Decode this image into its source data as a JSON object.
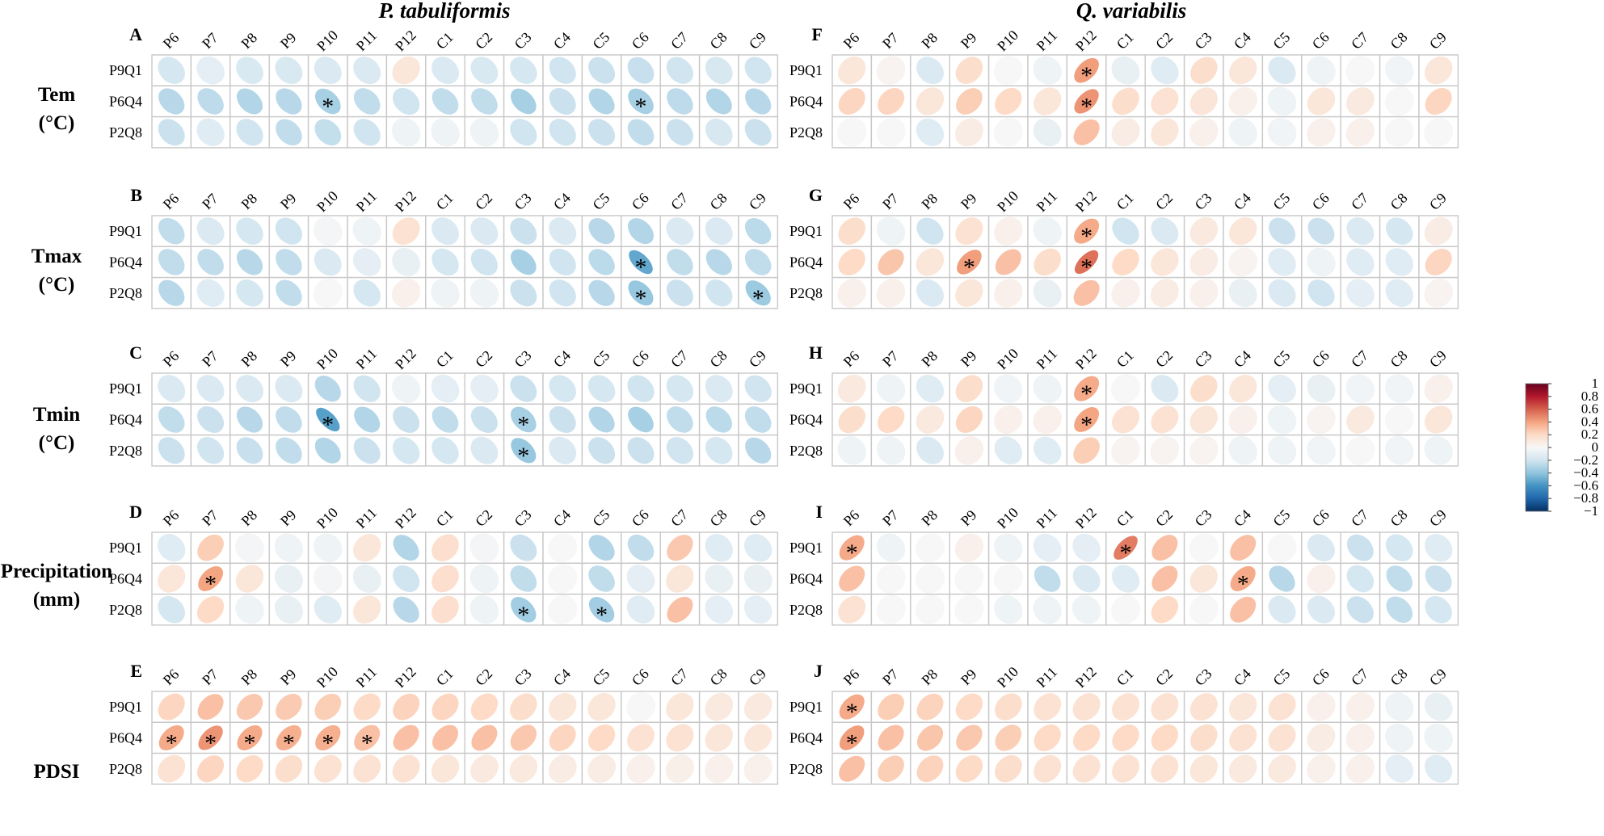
{
  "chart_data": {
    "type": "correlation-matrix",
    "titles": [
      "P. tabuliformis",
      "Q. variabilis"
    ],
    "variables": [
      "Tem\n(°C)",
      "Tmax\n(°C)",
      "Tmin\n(°C)",
      "Precipitation\n(mm)",
      "PDSI"
    ],
    "panel_labels": [
      [
        "A",
        "B",
        "C",
        "D",
        "E"
      ],
      [
        "F",
        "G",
        "H",
        "I",
        "J"
      ]
    ],
    "months": [
      "P6",
      "P7",
      "P8",
      "P9",
      "P10",
      "P11",
      "P12",
      "C1",
      "C2",
      "C3",
      "C4",
      "C5",
      "C6",
      "C7",
      "C8",
      "C9"
    ],
    "chronologies": [
      "P9Q1",
      "P6Q4",
      "P2Q8"
    ],
    "colorbar": {
      "min": -1,
      "max": 1,
      "ticks": [
        "1",
        "0.8",
        "0.6",
        "0.4",
        "0.2",
        "0",
        "−0.2",
        "−0.4",
        "−0.6",
        "−0.8",
        "−1"
      ]
    },
    "significance_marker": "*",
    "panels": [
      {
        "label": "A",
        "species": "P. tabuliformis",
        "variable": "Tem (°C)",
        "values": [
          [
            -0.18,
            -0.1,
            -0.16,
            -0.16,
            -0.15,
            -0.15,
            0.12,
            -0.15,
            -0.16,
            -0.18,
            -0.2,
            -0.22,
            -0.23,
            -0.2,
            -0.17,
            -0.2
          ],
          [
            -0.28,
            -0.26,
            -0.3,
            -0.28,
            -0.33,
            -0.25,
            -0.2,
            -0.25,
            -0.25,
            -0.33,
            -0.22,
            -0.3,
            -0.33,
            -0.26,
            -0.3,
            -0.28
          ],
          [
            -0.22,
            -0.12,
            -0.2,
            -0.25,
            -0.24,
            -0.2,
            -0.05,
            -0.05,
            -0.05,
            -0.2,
            -0.2,
            -0.22,
            -0.25,
            -0.22,
            -0.17,
            -0.22
          ]
        ],
        "sig": [
          [],
          [
            4,
            12
          ],
          []
        ]
      },
      {
        "label": "B",
        "species": "P. tabuliformis",
        "variable": "Tmax (°C)",
        "values": [
          [
            -0.25,
            -0.15,
            -0.18,
            -0.2,
            -0.02,
            -0.05,
            0.15,
            -0.15,
            -0.15,
            -0.22,
            -0.15,
            -0.28,
            -0.3,
            -0.15,
            -0.15,
            -0.27
          ],
          [
            -0.25,
            -0.25,
            -0.28,
            -0.25,
            -0.15,
            -0.1,
            -0.08,
            -0.18,
            -0.2,
            -0.33,
            -0.2,
            -0.27,
            -0.52,
            -0.25,
            -0.28,
            -0.25
          ],
          [
            -0.28,
            -0.12,
            -0.18,
            -0.25,
            0,
            -0.18,
            0.05,
            -0.05,
            -0.05,
            -0.22,
            -0.2,
            -0.28,
            -0.38,
            -0.22,
            -0.2,
            -0.37
          ]
        ],
        "sig": [
          [],
          [
            12
          ],
          [
            12,
            15
          ]
        ]
      },
      {
        "label": "C",
        "species": "P. tabuliformis",
        "variable": "Tmin (°C)",
        "values": [
          [
            -0.15,
            -0.15,
            -0.15,
            -0.15,
            -0.28,
            -0.2,
            -0.05,
            -0.1,
            -0.1,
            -0.22,
            -0.18,
            -0.18,
            -0.2,
            -0.18,
            -0.15,
            -0.2
          ],
          [
            -0.25,
            -0.22,
            -0.28,
            -0.25,
            -0.55,
            -0.3,
            -0.22,
            -0.25,
            -0.22,
            -0.33,
            -0.22,
            -0.3,
            -0.33,
            -0.25,
            -0.27,
            -0.25
          ],
          [
            -0.22,
            -0.2,
            -0.23,
            -0.25,
            -0.3,
            -0.22,
            -0.18,
            -0.18,
            -0.15,
            -0.38,
            -0.15,
            -0.22,
            -0.22,
            -0.2,
            -0.18,
            -0.28
          ]
        ],
        "sig": [
          [],
          [
            4,
            9
          ],
          [
            9
          ]
        ]
      },
      {
        "label": "D",
        "species": "P. tabuliformis",
        "variable": "Precipitation (mm)",
        "values": [
          [
            -0.12,
            0.25,
            -0.02,
            -0.05,
            -0.05,
            0.12,
            -0.3,
            0.17,
            -0.02,
            -0.22,
            0,
            -0.3,
            -0.25,
            0.27,
            -0.12,
            -0.12
          ],
          [
            0.12,
            0.4,
            0.12,
            -0.08,
            -0.02,
            -0.08,
            -0.2,
            0.17,
            -0.05,
            -0.25,
            0,
            -0.25,
            -0.1,
            0.12,
            -0.08,
            -0.08
          ],
          [
            -0.18,
            0.2,
            -0.05,
            -0.08,
            -0.12,
            0.12,
            -0.28,
            0.17,
            -0.05,
            -0.35,
            0,
            -0.35,
            -0.12,
            0.3,
            -0.1,
            -0.1
          ]
        ],
        "sig": [
          [],
          [
            1
          ],
          [
            9,
            11
          ]
        ]
      },
      {
        "label": "E",
        "species": "P. tabuliformis",
        "variable": "PDSI",
        "values": [
          [
            0.22,
            0.3,
            0.27,
            0.26,
            0.25,
            0.2,
            0.23,
            0.22,
            0.2,
            0.18,
            0.12,
            0.12,
            0,
            0.12,
            0.1,
            0.1
          ],
          [
            0.38,
            0.45,
            0.38,
            0.36,
            0.36,
            0.3,
            0.3,
            0.3,
            0.3,
            0.27,
            0.22,
            0.2,
            0.15,
            0.15,
            0.12,
            0.12
          ],
          [
            0.15,
            0.22,
            0.2,
            0.18,
            0.15,
            0.15,
            0.15,
            0.12,
            0.1,
            0.1,
            0.08,
            0.08,
            0.05,
            0.06,
            0.05,
            0.05
          ]
        ],
        "sig": [
          [],
          [
            0,
            1,
            2,
            3,
            4,
            5
          ],
          []
        ]
      },
      {
        "label": "F",
        "species": "Q. variabilis",
        "variable": "Tem (°C)",
        "values": [
          [
            0.12,
            0.03,
            -0.15,
            0.18,
            0,
            -0.05,
            0.42,
            -0.08,
            -0.12,
            0.18,
            0.12,
            -0.15,
            -0.05,
            0,
            -0.03,
            0.12
          ],
          [
            0.22,
            0.22,
            0.12,
            0.25,
            0.2,
            0.12,
            0.45,
            0.18,
            0.15,
            0.13,
            0.05,
            -0.05,
            0.12,
            0.1,
            0,
            0.22
          ],
          [
            0,
            0,
            -0.12,
            0.08,
            0,
            -0.08,
            0.3,
            0.08,
            0.12,
            0.05,
            -0.05,
            -0.03,
            0.05,
            0.05,
            0,
            0
          ]
        ],
        "sig": [
          [
            6
          ],
          [
            6
          ],
          []
        ]
      },
      {
        "label": "G",
        "species": "Q. variabilis",
        "variable": "Tmax (°C)",
        "values": [
          [
            0.18,
            -0.05,
            -0.2,
            0.15,
            0.05,
            -0.05,
            0.38,
            -0.2,
            -0.15,
            0.1,
            0.12,
            -0.22,
            -0.22,
            -0.15,
            -0.18,
            0.08
          ],
          [
            0.2,
            0.28,
            0.12,
            0.42,
            0.3,
            0.18,
            0.55,
            0.2,
            0.12,
            0.08,
            0.03,
            -0.12,
            -0.05,
            -0.12,
            -0.12,
            0.22
          ],
          [
            0.05,
            0.05,
            -0.15,
            0.12,
            0.05,
            -0.08,
            0.3,
            0.05,
            0.08,
            0.05,
            -0.08,
            -0.15,
            -0.2,
            -0.1,
            -0.12,
            0.03
          ]
        ],
        "sig": [
          [
            6
          ],
          [
            3,
            6
          ],
          []
        ]
      },
      {
        "label": "H",
        "species": "Q. variabilis",
        "variable": "Tmin (°C)",
        "values": [
          [
            0.1,
            -0.05,
            -0.12,
            0.18,
            -0.03,
            -0.05,
            0.38,
            0,
            -0.15,
            0.18,
            0.12,
            -0.1,
            -0.08,
            -0.03,
            -0.03,
            0.05
          ],
          [
            0.18,
            0.2,
            0.1,
            0.22,
            0.05,
            0.05,
            0.4,
            0.15,
            0.15,
            0.12,
            0.05,
            -0.05,
            0.03,
            0.1,
            0,
            0.12
          ],
          [
            -0.05,
            -0.05,
            -0.15,
            0.05,
            -0.12,
            -0.12,
            0.25,
            0.03,
            0.03,
            0.03,
            -0.05,
            -0.05,
            -0.03,
            0,
            -0.03,
            -0.05
          ]
        ],
        "sig": [
          [
            6
          ],
          [
            6
          ],
          []
        ]
      },
      {
        "label": "I",
        "species": "Q. variabilis",
        "variable": "Precipitation (mm)",
        "values": [
          [
            0.38,
            -0.05,
            0,
            0.05,
            -0.05,
            -0.1,
            -0.1,
            0.52,
            0.3,
            0,
            0.3,
            0,
            -0.15,
            -0.22,
            -0.18,
            -0.12
          ],
          [
            0.3,
            0,
            0,
            0,
            0,
            -0.25,
            -0.15,
            -0.12,
            0.3,
            0.12,
            0.38,
            -0.28,
            0.05,
            -0.18,
            -0.25,
            -0.22
          ],
          [
            0.15,
            0,
            0,
            0,
            -0.05,
            -0.05,
            -0.05,
            0,
            0.2,
            0,
            0.3,
            -0.15,
            -0.15,
            -0.22,
            -0.25,
            -0.18
          ]
        ],
        "sig": [
          [
            0,
            7
          ],
          [
            10
          ],
          []
        ]
      },
      {
        "label": "J",
        "species": "Q. variabilis",
        "variable": "PDSI",
        "values": [
          [
            0.38,
            0.25,
            0.23,
            0.2,
            0.18,
            0.15,
            0.15,
            0.15,
            0.15,
            0.15,
            0.12,
            0.15,
            0.05,
            0.05,
            -0.05,
            -0.08
          ],
          [
            0.42,
            0.3,
            0.28,
            0.27,
            0.25,
            0.2,
            0.2,
            0.2,
            0.2,
            0.18,
            0.15,
            0.15,
            0.08,
            0.05,
            -0.05,
            -0.05
          ],
          [
            0.3,
            0.25,
            0.23,
            0.2,
            0.18,
            0.15,
            0.15,
            0.15,
            0.15,
            0.12,
            0.1,
            0.1,
            0.05,
            0.05,
            -0.1,
            -0.12
          ]
        ],
        "sig": [
          [
            0
          ],
          [
            0
          ],
          []
        ]
      }
    ]
  }
}
